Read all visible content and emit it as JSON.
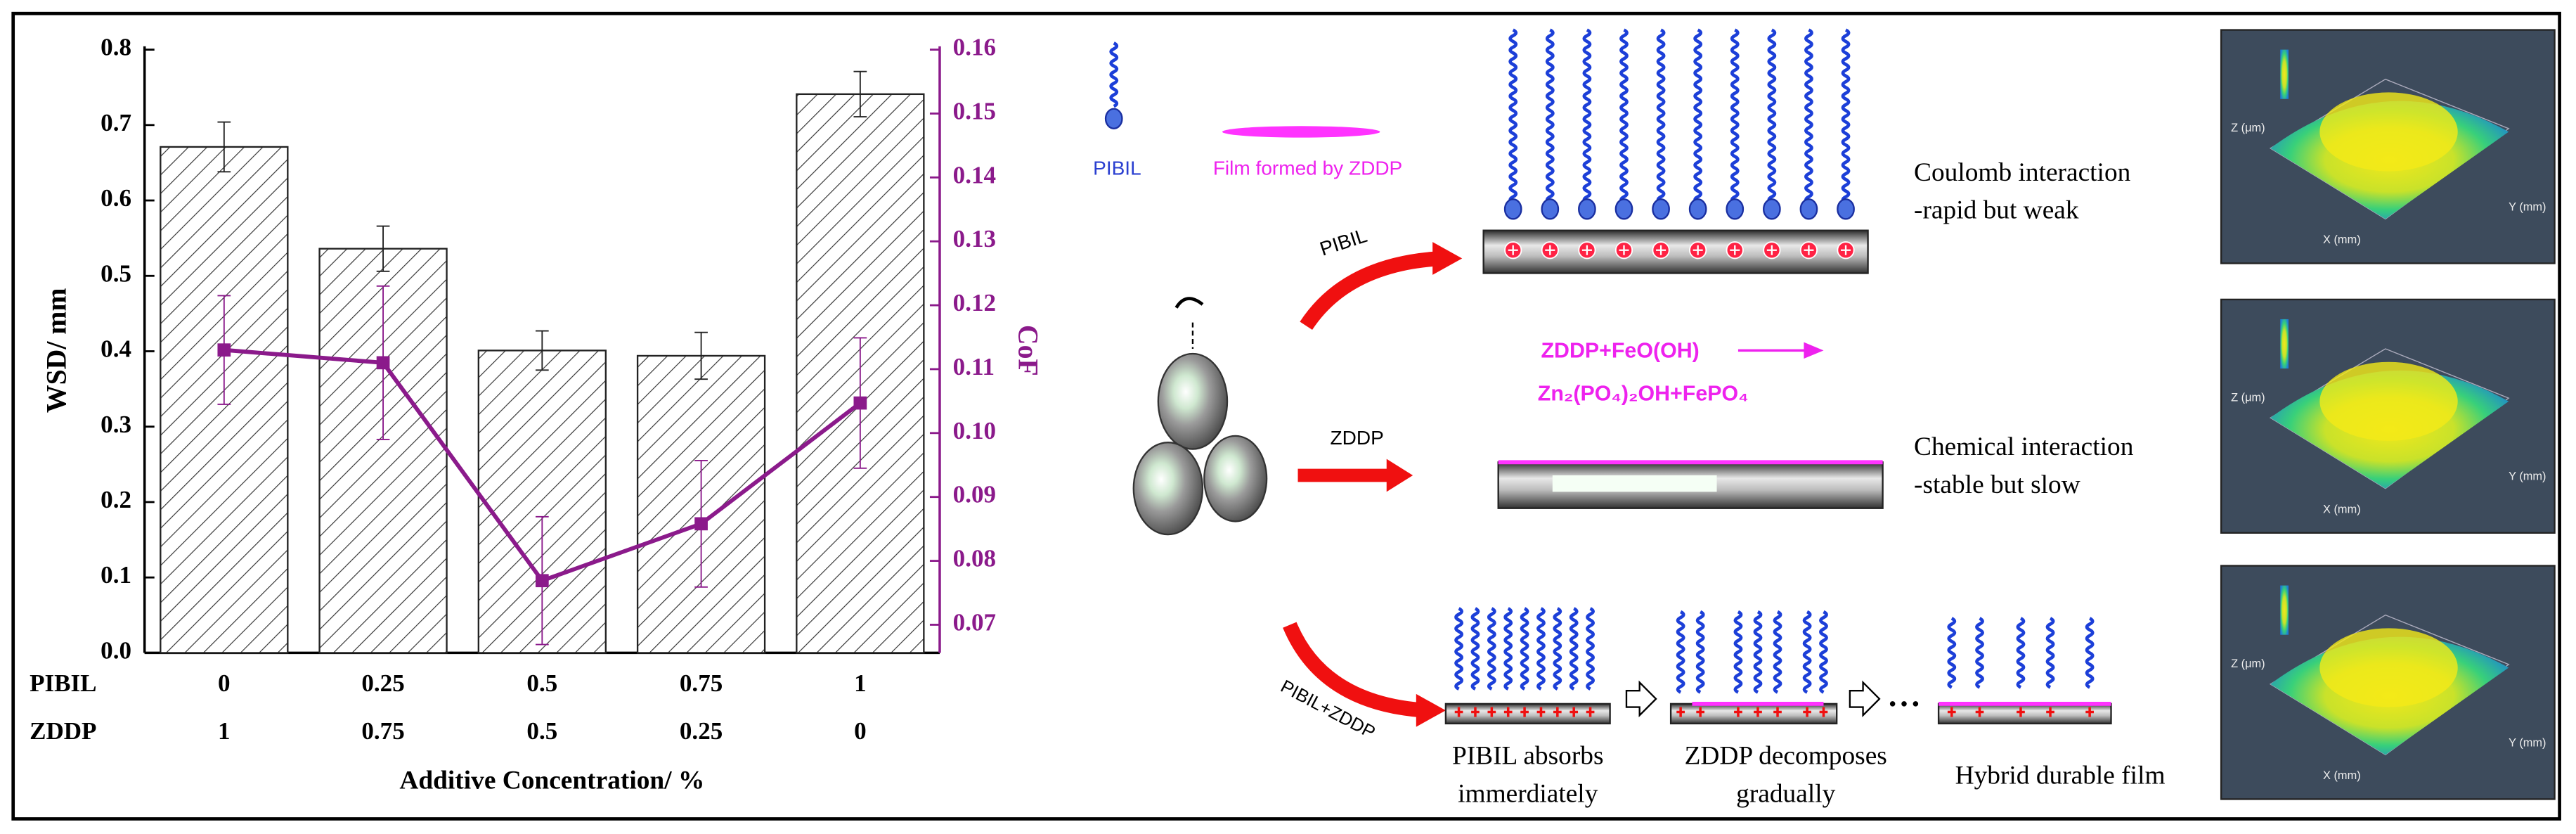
{
  "chart_data": {
    "type": "bar",
    "ylabel": "WSD/ mm",
    "y2label": "CoF",
    "xlabel": "Additive Concentration/ %",
    "category_row_names": [
      "PIBIL",
      "ZDDP"
    ],
    "categories": [
      "0",
      "0.25",
      "0.5",
      "0.75",
      "1"
    ],
    "categories_row2": [
      "1",
      "0.75",
      "0.5",
      "0.25",
      "0"
    ],
    "ylim": [
      0,
      0.8
    ],
    "yticks": [
      {
        "value": 0,
        "label": "0.0"
      },
      0.1,
      0.2,
      0.3,
      0.4,
      0.5,
      0.6,
      0.7,
      0.8
    ],
    "y2lim": [
      0.0656,
      0.16
    ],
    "y2ticks": [
      0.07,
      0.08,
      0.09,
      {
        "value": 0.1,
        "label": "0.10"
      },
      0.11,
      0.12,
      0.13,
      0.14,
      0.15,
      0.16
    ],
    "series": [
      {
        "type": "bar",
        "color": "#222222",
        "values": [
          0.671,
          0.536,
          0.401,
          0.394,
          0.741
        ],
        "errors": [
          0.033,
          0.03,
          0.026,
          0.031,
          0.03
        ]
      },
      {
        "type": "line",
        "axis": "y2",
        "color": "#8b1a8b",
        "values": [
          0.113,
          0.111,
          0.0769,
          0.0858,
          0.1047
        ],
        "errors": [
          0.0085,
          0.012,
          0.01,
          0.0099,
          0.0102
        ]
      }
    ]
  },
  "diagram": {
    "legend_pibil": "PIBIL",
    "legend_film": "Film formed by ZDDP",
    "arrow_pibil": "PIBIL",
    "arrow_zddp": "ZDDP",
    "arrow_both": "PIBIL+ZDDP",
    "coulomb": [
      "Coulomb interaction",
      "-rapid  but weak"
    ],
    "reaction": [
      "ZDDP+FeO(OH)",
      "Zn₂(PO₄)₂OH+FePO₄"
    ],
    "chemical": [
      "Chemical interaction",
      "-stable but slow"
    ],
    "steps": [
      [
        "PIBIL absorbs",
        "immerdiately"
      ],
      [
        "ZDDP decomposes",
        "gradually"
      ],
      [
        "Hybrid durable film"
      ]
    ],
    "surface_axes": [
      "Z (μm)",
      "X (mm)",
      "Y (mm)"
    ]
  }
}
